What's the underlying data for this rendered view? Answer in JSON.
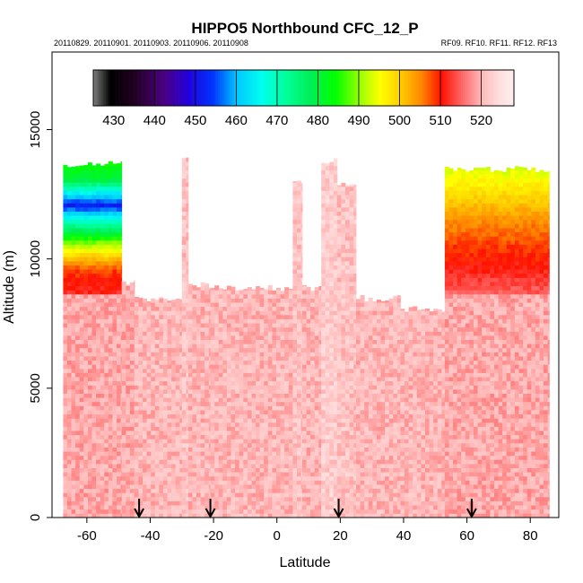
{
  "chart_data": {
    "type": "heatmap",
    "title": "HIPPO5 Northbound CFC_12_P",
    "subtitle_left": "20110829. 20110901. 20110903. 20110906. 20110908",
    "subtitle_right": "RF09. RF10. RF11. RF12. RF13",
    "xlabel": "Latitude",
    "ylabel": "Altitude (m)",
    "xlim": [
      -71,
      89
    ],
    "ylim": [
      0,
      18000
    ],
    "xticks": [
      -60,
      -40,
      -20,
      0,
      20,
      40,
      60,
      80
    ],
    "yticks": [
      0,
      5000,
      10000,
      15000
    ],
    "colorbar": {
      "min": 425,
      "max": 528,
      "ticks": [
        430,
        440,
        450,
        460,
        470,
        480,
        490,
        500,
        510,
        520
      ],
      "colors": [
        [
          425,
          "#777777"
        ],
        [
          429,
          "#000000"
        ],
        [
          435,
          "#220022"
        ],
        [
          442,
          "#4b0082"
        ],
        [
          448,
          "#2200dd"
        ],
        [
          454,
          "#0033ff"
        ],
        [
          460,
          "#00c8ff"
        ],
        [
          466,
          "#00ffee"
        ],
        [
          472,
          "#00ff99"
        ],
        [
          478,
          "#00ee55"
        ],
        [
          484,
          "#00ff00"
        ],
        [
          490,
          "#99ff00"
        ],
        [
          495,
          "#ffff00"
        ],
        [
          500,
          "#ffcc00"
        ],
        [
          505,
          "#ff8800"
        ],
        [
          510,
          "#ff1100"
        ],
        [
          515,
          "#ff6666"
        ],
        [
          520,
          "#ffbbbb"
        ],
        [
          524,
          "#ffdddd"
        ],
        [
          528,
          "#fff0f0"
        ]
      ]
    },
    "profile_arrows_latitude": [
      -43.5,
      -21,
      19.5,
      61.5
    ],
    "columns": [
      {
        "lat_range": [
          -67.5,
          -49
        ],
        "top_alt": 13800,
        "background_value": 519,
        "gradient_profile": [
          [
            8500,
            512
          ],
          [
            9500,
            508
          ],
          [
            10000,
            500
          ],
          [
            10500,
            490
          ],
          [
            11000,
            478
          ],
          [
            11500,
            466
          ],
          [
            12000,
            452
          ],
          [
            12500,
            465
          ],
          [
            13000,
            480
          ],
          [
            13800,
            485
          ]
        ]
      },
      {
        "lat_range": [
          -49,
          -45
        ],
        "top_alt": 9200,
        "background_value": 519
      },
      {
        "lat_range": [
          -45,
          -30
        ],
        "top_alt": 8600,
        "background_value": 520
      },
      {
        "lat_range": [
          -30,
          -28
        ],
        "top_alt": 14000,
        "background_value": 521
      },
      {
        "lat_range": [
          -28,
          -21
        ],
        "top_alt": 9100,
        "background_value": 520
      },
      {
        "lat_range": [
          -21,
          5
        ],
        "top_alt": 9000,
        "background_value": 520
      },
      {
        "lat_range": [
          5,
          8
        ],
        "top_alt": 13100,
        "background_value": 521
      },
      {
        "lat_range": [
          8,
          14
        ],
        "top_alt": 9000,
        "background_value": 520
      },
      {
        "lat_range": [
          14,
          19
        ],
        "top_alt": 13900,
        "background_value": 522
      },
      {
        "lat_range": [
          19,
          25
        ],
        "top_alt": 13000,
        "background_value": 521
      },
      {
        "lat_range": [
          25,
          39
        ],
        "top_alt": 8600,
        "background_value": 520
      },
      {
        "lat_range": [
          39,
          53
        ],
        "top_alt": 8200,
        "background_value": 520
      },
      {
        "lat_range": [
          53,
          86
        ],
        "top_alt": 13600,
        "background_value": 519,
        "gradient_profile": [
          [
            8500,
            515
          ],
          [
            9500,
            511
          ],
          [
            10500,
            508
          ],
          [
            11500,
            504
          ],
          [
            12500,
            498
          ],
          [
            13600,
            492
          ]
        ]
      }
    ]
  }
}
